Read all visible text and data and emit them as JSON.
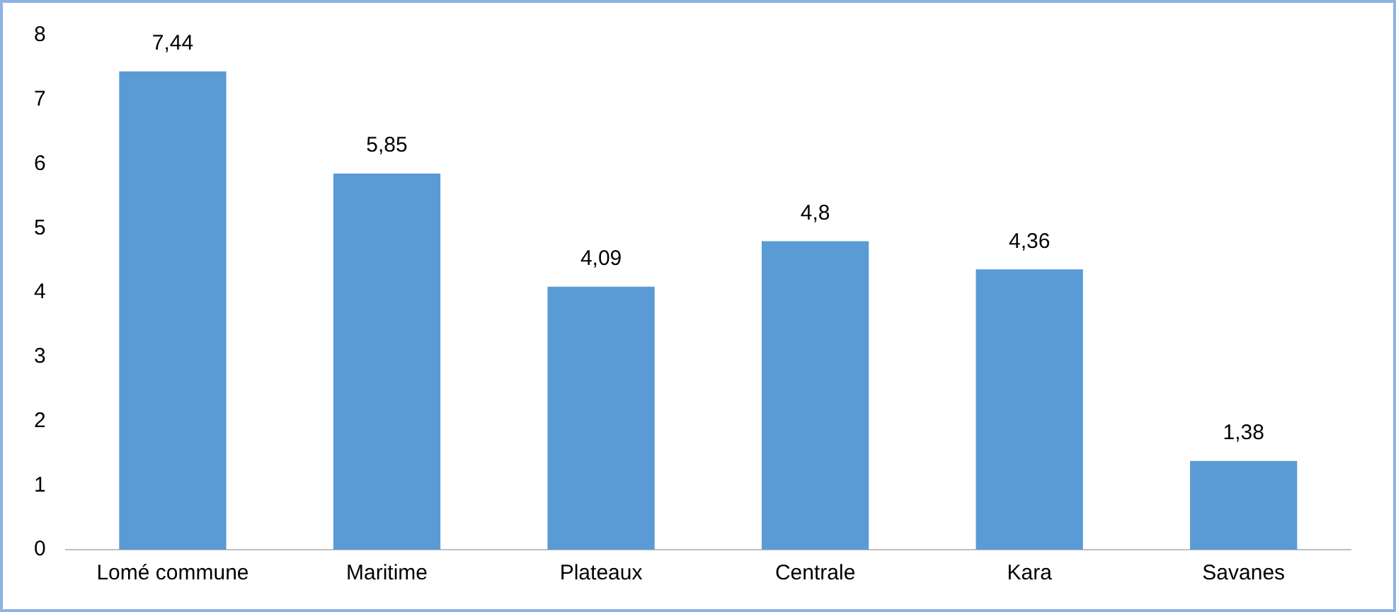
{
  "chart_data": {
    "type": "bar",
    "categories": [
      "Lomé commune",
      "Maritime",
      "Plateaux",
      "Centrale",
      "Kara",
      "Savanes"
    ],
    "values": [
      7.44,
      5.85,
      4.09,
      4.8,
      4.36,
      1.38
    ],
    "value_labels": [
      "7,44",
      "5,85",
      "4,09",
      "4,8",
      "4,36",
      "1,38"
    ],
    "color": "#5b9bd5",
    "ylim": [
      0,
      8
    ],
    "yticks": [
      0,
      1,
      2,
      3,
      4,
      5,
      6,
      7,
      8
    ],
    "grid": false,
    "legend": false
  }
}
